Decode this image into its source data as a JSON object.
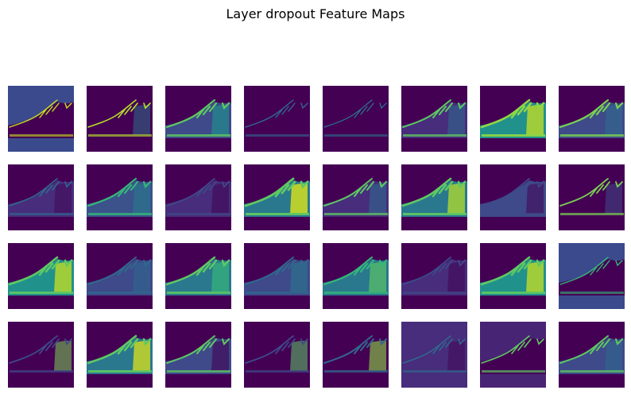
{
  "title": "Layer dropout Feature Maps",
  "grid": {
    "rows": 4,
    "cols": 8
  },
  "colormap": [
    "#440154",
    "#3b528b",
    "#21918c",
    "#5ec962",
    "#fde725"
  ],
  "tiles": [
    {
      "bg": "#3b4a8d",
      "shoe": "#440154",
      "edge": "#c8e020",
      "glow": "#440154",
      "strength": 0.2
    },
    {
      "bg": "#440154",
      "shoe": "#440154",
      "edge": "#b5de2b",
      "glow": "#2a788e",
      "strength": 0.3
    },
    {
      "bg": "#440154",
      "shoe": "#3e4a89",
      "edge": "#5ec962",
      "glow": "#21918c",
      "strength": 0.6
    },
    {
      "bg": "#440154",
      "shoe": "#440154",
      "edge": "#31688e",
      "glow": "#440154",
      "strength": 0.2
    },
    {
      "bg": "#440154",
      "shoe": "#440154",
      "edge": "#2a788e",
      "glow": "#440154",
      "strength": 0.1
    },
    {
      "bg": "#440154",
      "shoe": "#472d7b",
      "edge": "#5ec962",
      "glow": "#31688e",
      "strength": 0.5
    },
    {
      "bg": "#440154",
      "shoe": "#21918c",
      "edge": "#8fd744",
      "glow": "#c8e020",
      "strength": 0.8
    },
    {
      "bg": "#440154",
      "shoe": "#3e4a89",
      "edge": "#7ad151",
      "glow": "#31688e",
      "strength": 0.6
    },
    {
      "bg": "#440154",
      "shoe": "#472d7b",
      "edge": "#31688e",
      "glow": "#440154",
      "strength": 0.3
    },
    {
      "bg": "#440154",
      "shoe": "#3b528b",
      "edge": "#35b779",
      "glow": "#2a788e",
      "strength": 0.6
    },
    {
      "bg": "#440154",
      "shoe": "#472d7b",
      "edge": "#3e4a89",
      "glow": "#440154",
      "strength": 0.4
    },
    {
      "bg": "#440154",
      "shoe": "#2a788e",
      "edge": "#5ec962",
      "glow": "#dde318",
      "strength": 0.9
    },
    {
      "bg": "#440154",
      "shoe": "#472d7b",
      "edge": "#5ec962",
      "glow": "#31688e",
      "strength": 0.5
    },
    {
      "bg": "#440154",
      "shoe": "#2a788e",
      "edge": "#5ec962",
      "glow": "#b5de2b",
      "strength": 0.8
    },
    {
      "bg": "#440154",
      "shoe": "#3e4a89",
      "edge": "#3e4a89",
      "glow": "#440154",
      "strength": 0.4
    },
    {
      "bg": "#440154",
      "shoe": "#440154",
      "edge": "#7ad151",
      "glow": "#3e4a89",
      "strength": 0.4
    },
    {
      "bg": "#440154",
      "shoe": "#21918c",
      "edge": "#5ec962",
      "glow": "#c8e020",
      "strength": 0.8
    },
    {
      "bg": "#440154",
      "shoe": "#3e4a89",
      "edge": "#31688e",
      "glow": "#31688e",
      "strength": 0.5
    },
    {
      "bg": "#440154",
      "shoe": "#2a788e",
      "edge": "#5ec962",
      "glow": "#35b779",
      "strength": 0.7
    },
    {
      "bg": "#440154",
      "shoe": "#3e4a89",
      "edge": "#31688e",
      "glow": "#2a788e",
      "strength": 0.5
    },
    {
      "bg": "#440154",
      "shoe": "#2a788e",
      "edge": "#35b779",
      "glow": "#5ec962",
      "strength": 0.6
    },
    {
      "bg": "#440154",
      "shoe": "#472d7b",
      "edge": "#3e4a89",
      "glow": "#440154",
      "strength": 0.4
    },
    {
      "bg": "#440154",
      "shoe": "#21918c",
      "edge": "#5ec962",
      "glow": "#c8e020",
      "strength": 0.8
    },
    {
      "bg": "#3b4a8d",
      "shoe": "#440154",
      "edge": "#35b779",
      "glow": "#440154",
      "strength": 0.2
    },
    {
      "bg": "#440154",
      "shoe": "#440154",
      "edge": "#3e4a89",
      "glow": "#7ad151",
      "strength": 0.4
    },
    {
      "bg": "#440154",
      "shoe": "#2a788e",
      "edge": "#5ec962",
      "glow": "#dde318",
      "strength": 0.8
    },
    {
      "bg": "#440154",
      "shoe": "#3e4a89",
      "edge": "#5ec962",
      "glow": "#440154",
      "strength": 0.5
    },
    {
      "bg": "#440154",
      "shoe": "#440154",
      "edge": "#3e4a89",
      "glow": "#5ec962",
      "strength": 0.4
    },
    {
      "bg": "#440154",
      "shoe": "#440154",
      "edge": "#31688e",
      "glow": "#8fd744",
      "strength": 0.5
    },
    {
      "bg": "#472d7b",
      "shoe": "#472d7b",
      "edge": "#31688e",
      "glow": "#440154",
      "strength": 0.3
    },
    {
      "bg": "#482475",
      "shoe": "#440154",
      "edge": "#5ec962",
      "glow": "#440154",
      "strength": 0.3
    },
    {
      "bg": "#440154",
      "shoe": "#3e4a89",
      "edge": "#5ec962",
      "glow": "#31688e",
      "strength": 0.5
    }
  ]
}
